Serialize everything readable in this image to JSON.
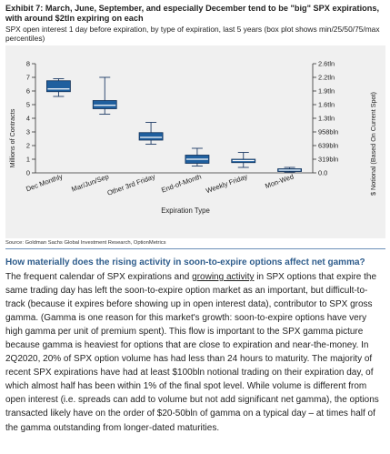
{
  "exhibit": {
    "title": "Exhibit 7: March, June, September, and especially December tend to be \"big\" SPX expirations, with around $2tln expiring on each",
    "subtitle": "SPX open interest 1 day before expiration, by type of expiration, last 5 years (box plot shows min/25/50/75/max percentiles)",
    "source": "Source: Goldman Sachs Global Investment Research, OptionMetrics"
  },
  "chart_data": {
    "type": "box",
    "xlabel": "Expiration Type",
    "ylabel": "Millions of Contracts",
    "ylabel_right": "$ Notional (Based On Current Spot)",
    "ylim": [
      0,
      8
    ],
    "yticks": [
      "0",
      "1",
      "2",
      "3",
      "4",
      "5",
      "6",
      "7",
      "8"
    ],
    "right_ticks": [
      {
        "value": 0,
        "label": "0.0"
      },
      {
        "value": 1,
        "label": "319bln"
      },
      {
        "value": 2,
        "label": "639bln"
      },
      {
        "value": 3,
        "label": "958bln"
      },
      {
        "value": 4,
        "label": "1.3tln"
      },
      {
        "value": 5,
        "label": "1.6tln"
      },
      {
        "value": 6,
        "label": "1.9tln"
      },
      {
        "value": 7,
        "label": "2.2tln"
      },
      {
        "value": 8,
        "label": "2.6tln"
      }
    ],
    "categories": [
      "Dec Monthly",
      "Mar/Jun/Sep",
      "Other 3rd Friday",
      "End-of-Month",
      "Weekly Friday",
      "Mon-Wed"
    ],
    "boxes": [
      {
        "min": 5.6,
        "q1": 5.95,
        "median": 6.15,
        "q3": 6.75,
        "max": 6.9
      },
      {
        "min": 4.3,
        "q1": 4.7,
        "median": 4.95,
        "q3": 5.3,
        "max": 7.0
      },
      {
        "min": 2.1,
        "q1": 2.4,
        "median": 2.6,
        "q3": 2.95,
        "max": 3.7
      },
      {
        "min": 0.5,
        "q1": 0.7,
        "median": 1.0,
        "q3": 1.3,
        "max": 1.8
      },
      {
        "min": 0.4,
        "q1": 0.75,
        "median": 0.9,
        "q3": 1.0,
        "max": 1.5
      },
      {
        "min": 0.05,
        "q1": 0.1,
        "median": 0.2,
        "q3": 0.3,
        "max": 0.4
      }
    ],
    "grid": false,
    "colors": {
      "box_fill": "#1f5f9e",
      "box_stroke": "#0f2f57",
      "median": "#ffffff",
      "whisker": "#1f3c66",
      "panel": "#f0f0f0"
    }
  },
  "section": {
    "heading": "How materially does the rising activity in soon-to-expire options affect net gamma?",
    "paragraph_before_link": "The frequent calendar of SPX expirations and ",
    "link": "growing activity",
    "paragraph_after_link": " in SPX options that expire the same trading day has left the soon-to-expire option market as an important, but difficult-to-track (because it expires before showing up in open interest data), contributor to SPX gross gamma. (Gamma is one reason for this market's growth: soon-to-expire options have very high gamma per unit of premium spent). This flow is important to the SPX gamma picture because gamma is heaviest for options that are close to expiration and near-the-money. In 2Q2020, 20% of SPX option volume has had less than 24 hours to maturity. The majority of recent SPX expirations have had at least $100bln notional trading on their expiration day, of which almost half has been within 1% of the final spot level. While volume is different from open interest (i.e. spreads can add to volume but not add significant net gamma), the options transacted likely have on the order of $20-50bln of gamma on a typical day – at times half of the gamma outstanding from longer-dated maturities."
  }
}
